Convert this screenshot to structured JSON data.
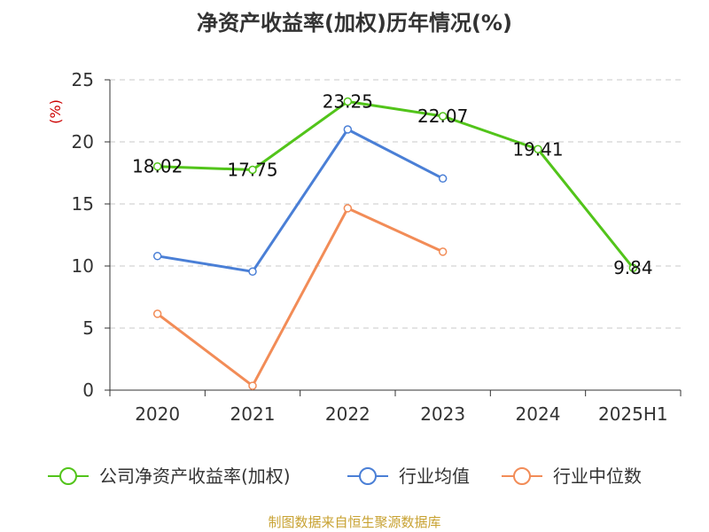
{
  "chart_data": {
    "type": "line",
    "title": "净资产收益率(加权)历年情况(%)",
    "ylabel": "(%)",
    "categories": [
      "2020",
      "2021",
      "2022",
      "2023",
      "2024",
      "2025H1"
    ],
    "ylim": [
      0,
      25
    ],
    "yticks": [
      0,
      5,
      10,
      15,
      20,
      25
    ],
    "grid": true,
    "legend_position": "bottom",
    "series": [
      {
        "name": "公司净资产收益率(加权)",
        "color": "#52c41a",
        "values": [
          18.02,
          17.75,
          23.25,
          22.07,
          19.41,
          9.84
        ],
        "labels": [
          "18.02",
          "17.75",
          "23.25",
          "22.07",
          "19.41",
          "9.84"
        ]
      },
      {
        "name": "行业均值",
        "color": "#4a7fd6",
        "values": [
          10.8,
          9.55,
          21.0,
          17.05,
          null,
          null
        ]
      },
      {
        "name": "行业中位数",
        "color": "#f28c57",
        "values": [
          6.15,
          0.35,
          14.65,
          11.15,
          null,
          null
        ]
      }
    ]
  },
  "source": "制图数据来自恒生聚源数据库"
}
